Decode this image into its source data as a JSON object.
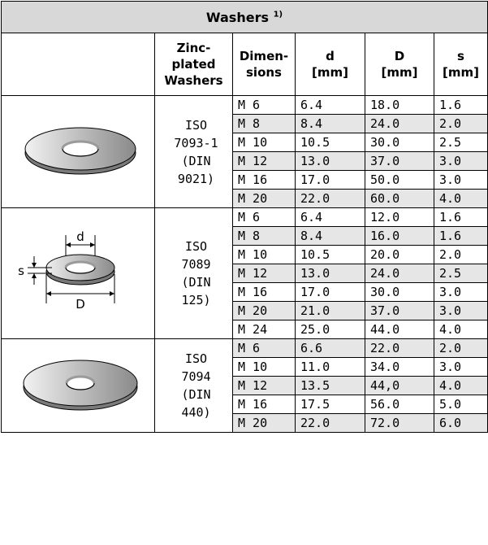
{
  "title": "Washers",
  "title_footnote": "1)",
  "headers": {
    "type": "Zinc-\nplated\nWashers",
    "type_lines": [
      "Zinc-",
      "plated",
      "Washers"
    ],
    "dimensions_lines": [
      "Dimen-",
      "sions"
    ],
    "d_lines": [
      "d",
      "[mm]"
    ],
    "D_lines": [
      "D",
      "[mm]"
    ],
    "s_lines": [
      "s",
      "[mm]"
    ]
  },
  "groups": [
    {
      "image": "flat-washer-icon",
      "standard_lines": [
        "ISO",
        "7093-1",
        "(DIN",
        "9021)"
      ],
      "rows": [
        {
          "size": "M 6",
          "d": "6.4",
          "D": "18.0",
          "s": "1.6"
        },
        {
          "size": "M 8",
          "d": "8.4",
          "D": "24.0",
          "s": "2.0"
        },
        {
          "size": "M 10",
          "d": "10.5",
          "D": "30.0",
          "s": "2.5"
        },
        {
          "size": "M 12",
          "d": "13.0",
          "D": "37.0",
          "s": "3.0"
        },
        {
          "size": "M 16",
          "d": "17.0",
          "D": "50.0",
          "s": "3.0"
        },
        {
          "size": "M 20",
          "d": "22.0",
          "D": "60.0",
          "s": "4.0"
        }
      ]
    },
    {
      "image": "dimensioned-washer-diagram",
      "diagram_labels": {
        "d": "d",
        "s": "s",
        "D": "D"
      },
      "standard_lines": [
        "ISO",
        "7089",
        "(DIN",
        "125)"
      ],
      "rows": [
        {
          "size": "M 6",
          "d": "6.4",
          "D": "12.0",
          "s": "1.6"
        },
        {
          "size": "M 8",
          "d": "8.4",
          "D": "16.0",
          "s": "1.6"
        },
        {
          "size": "M 10",
          "d": "10.5",
          "D": "20.0",
          "s": "2.0"
        },
        {
          "size": "M 12",
          "d": "13.0",
          "D": "24.0",
          "s": "2.5"
        },
        {
          "size": "M 16",
          "d": "17.0",
          "D": "30.0",
          "s": "3.0"
        },
        {
          "size": "M 20",
          "d": "21.0",
          "D": "37.0",
          "s": "3.0"
        },
        {
          "size": "M 24",
          "d": "25.0",
          "D": "44.0",
          "s": "4.0"
        }
      ]
    },
    {
      "image": "large-flat-washer-icon",
      "standard_lines": [
        "ISO",
        "7094",
        "(DIN",
        "440)"
      ],
      "rows": [
        {
          "size": "M 6",
          "d": "6.6",
          "D": "22.0",
          "s": "2.0"
        },
        {
          "size": "M 10",
          "d": "11.0",
          "D": "34.0",
          "s": "3.0"
        },
        {
          "size": "M 12",
          "d": "13.5",
          "D": "44,0",
          "s": "4.0"
        },
        {
          "size": "M 16",
          "d": "17.5",
          "D": "56.0",
          "s": "5.0"
        },
        {
          "size": "M 20",
          "d": "22.0",
          "D": "72.0",
          "s": "6.0"
        }
      ]
    }
  ],
  "colors": {
    "title_bg": "#d8d8d8",
    "shade": "#e6e6e6"
  }
}
